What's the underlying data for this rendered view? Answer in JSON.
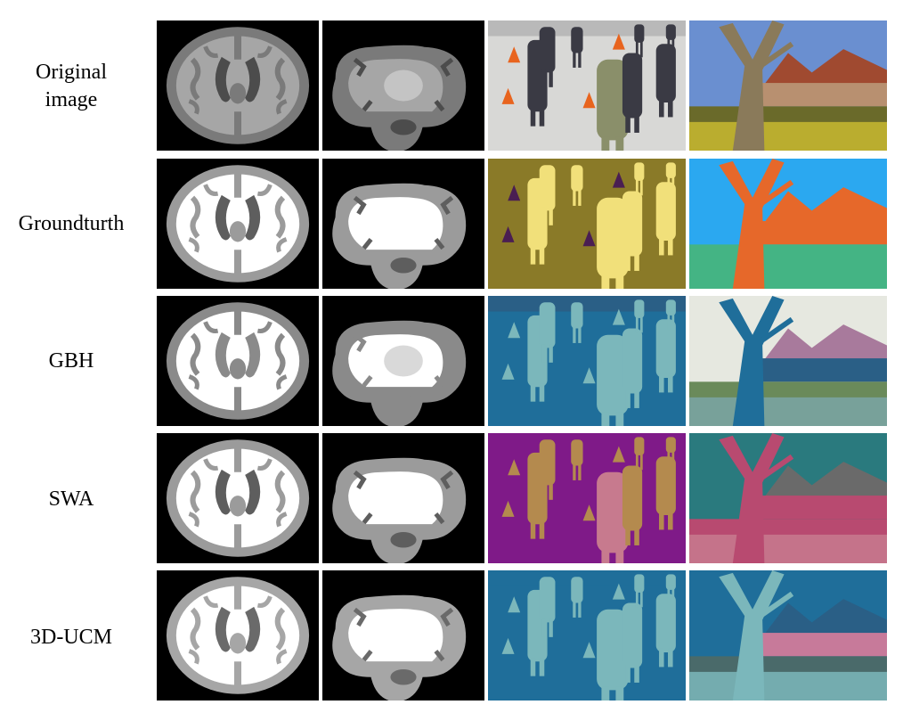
{
  "rows": [
    {
      "label": "Original\nimage"
    },
    {
      "label": "Groundturth"
    },
    {
      "label": "GBH"
    },
    {
      "label": "SWA"
    },
    {
      "label": "3D-UCM"
    }
  ],
  "palettes": {
    "mri_original": {
      "bg": "#000000",
      "outer": "#7a7a7a",
      "inner": "#a6a6a6",
      "dark": "#4c4c4c",
      "light": "#c4c4c4"
    },
    "mri_groundtruth": {
      "bg": "#000000",
      "outer": "#9b9b9b",
      "inner": "#ffffff",
      "dark": "#5e5e5e",
      "light": "#ffffff"
    },
    "mri_gbh": {
      "bg": "#000000",
      "outer": "#8a8a8a",
      "inner": "#ffffff",
      "dark": "#8a8a8a",
      "light": "#d9d9d9"
    },
    "mri_swa": {
      "bg": "#000000",
      "outer": "#9b9b9b",
      "inner": "#ffffff",
      "dark": "#5e5e5e",
      "light": "#ffffff"
    },
    "mri_ucm": {
      "bg": "#000000",
      "outer": "#a6a6a6",
      "inner": "#ffffff",
      "dark": "#6a6a6a",
      "light": "#ffffff"
    },
    "skate_original": {
      "ice": "#d8d8d6",
      "people": "#3a3a44",
      "coat": "#8a8f6a",
      "cone": "#e8641e",
      "shade": "#b9b9b9"
    },
    "skate_groundtruth": {
      "ice": "#8a7a28",
      "people": "#f1e07a",
      "coat": "#f1e07a",
      "cone": "#4a1e52",
      "shade": "#8a7a28"
    },
    "skate_gbh": {
      "ice": "#1f6e9a",
      "people": "#7bb7bb",
      "coat": "#7bb7bb",
      "cone": "#7bb7bb",
      "shade": "#2a5f86"
    },
    "skate_swa": {
      "ice": "#7f1a88",
      "people": "#b48a4e",
      "coat": "#c77a8e",
      "cone": "#b48a4e",
      "shade": "#7f1a88"
    },
    "skate_ucm": {
      "ice": "#1f6e9a",
      "people": "#7bb7bb",
      "coat": "#7bb7bb",
      "cone": "#7bb7bb",
      "shade": "#1f6e9a"
    },
    "garden_original": {
      "sky": "#6a8fd0",
      "house": "#b89070",
      "roof": "#a04a30",
      "tree": "#8a7a5a",
      "ground": "#6a6a2a",
      "flower": "#c8b830"
    },
    "garden_groundtruth": {
      "sky": "#2ba8f0",
      "house": "#e6682a",
      "roof": "#e6682a",
      "tree": "#e6682a",
      "ground": "#44b484",
      "flower": "#44b484"
    },
    "garden_gbh": {
      "sky": "#e6e8e0",
      "house": "#2a5f86",
      "roof": "#a87a9c",
      "tree": "#1f6e9a",
      "ground": "#6a8a5a",
      "flower": "#7aa4a6"
    },
    "garden_swa": {
      "sky": "#2a7a7e",
      "house": "#b84a70",
      "roof": "#6a6a6a",
      "tree": "#b84a70",
      "ground": "#b84a70",
      "flower": "#c77a8e"
    },
    "garden_ucm": {
      "sky": "#1f6e9a",
      "house": "#c77a9a",
      "roof": "#2a5f86",
      "tree": "#7bb7bb",
      "ground": "#4a6a6a",
      "flower": "#7bb7bb"
    }
  }
}
